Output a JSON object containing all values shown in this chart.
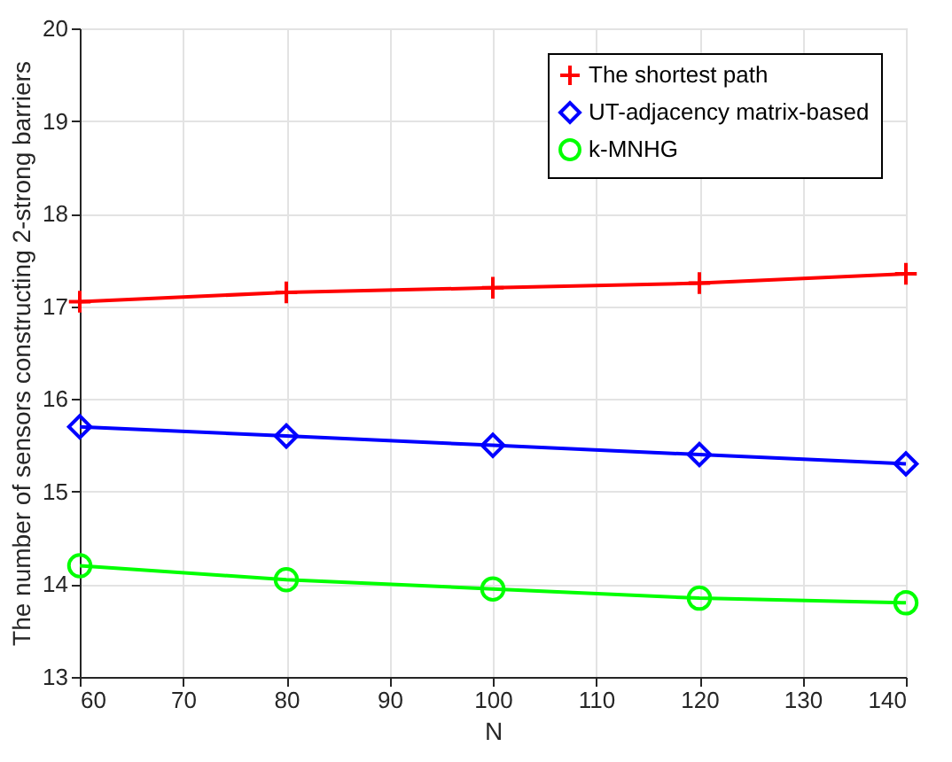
{
  "chart_data": {
    "type": "line",
    "xlabel": "N",
    "ylabel": "The number of sensors constructing 2-strong barriers",
    "x": [
      60,
      80,
      100,
      120,
      140
    ],
    "series": [
      {
        "name": "The shortest path",
        "color": "#ff0000",
        "marker": "cross",
        "values": [
          17.05,
          17.15,
          17.2,
          17.25,
          17.35
        ]
      },
      {
        "name": "UT-adjacency matrix-based",
        "color": "#0000ff",
        "marker": "diamond",
        "values": [
          15.7,
          15.6,
          15.5,
          15.4,
          15.3
        ]
      },
      {
        "name": "k-MNHG",
        "color": "#00ff00",
        "marker": "circle",
        "values": [
          14.2,
          14.05,
          13.95,
          13.85,
          13.8
        ]
      }
    ],
    "xlim": [
      60,
      140
    ],
    "xticks": [
      60,
      70,
      80,
      90,
      100,
      110,
      120,
      130,
      140
    ],
    "ylim": [
      13,
      20
    ],
    "yticks": [
      13,
      14,
      15,
      16,
      17,
      18,
      19,
      20
    ],
    "grid": true,
    "legend": "top right",
    "line_style": "solid"
  }
}
